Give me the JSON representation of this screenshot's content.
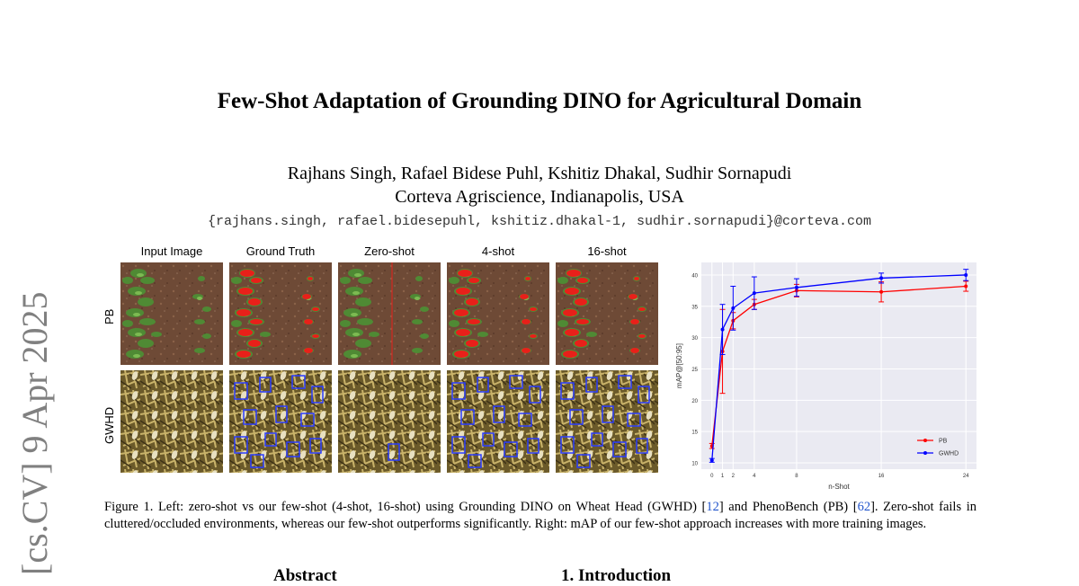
{
  "paper": {
    "title": "Few-Shot Adaptation of Grounding DINO for Agricultural Domain",
    "authors": "Rajhans Singh, Rafael Bidese Puhl, Kshitiz Dhakal, Sudhir Sornapudi",
    "affiliation": "Corteva Agriscience, Indianapolis, USA",
    "email": "{rajhans.singh, rafael.bidesepuhl, kshitiz.dhakal-1, sudhir.sornapudi}@corteva.com",
    "arxiv_stamp": "[cs.CV]  9 Apr 2025"
  },
  "figure": {
    "columns": [
      "Input Image",
      "Ground Truth",
      "Zero-shot",
      "4-shot",
      "16-shot"
    ],
    "rows": [
      "PB",
      "GWHD"
    ],
    "caption": {
      "part1": "Figure 1. Left: zero-shot vs our few-shot (4-shot, 16-shot) using Grounding DINO on Wheat Head (GWHD) [",
      "ref1": "12",
      "part2": "] and PhenoBench (PB) [",
      "ref2": "62",
      "part3": "]. Zero-shot fails in cluttered/occluded environments, whereas our few-shot outperforms significantly. Right: mAP of our few-shot approach increases with more training images."
    }
  },
  "sections": {
    "abstract": "Abstract",
    "intro": "1. Introduction"
  },
  "chart_data": {
    "type": "line",
    "xlabel": "n-Shot",
    "ylabel": "mAP@[50:95]",
    "x": [
      0,
      1,
      2,
      4,
      8,
      16,
      24
    ],
    "xticks": [
      0,
      1,
      2,
      4,
      8,
      16,
      24
    ],
    "yticks": [
      10,
      15,
      20,
      25,
      30,
      35,
      40
    ],
    "xlim": [
      -1,
      25
    ],
    "ylim": [
      9,
      42
    ],
    "grid": true,
    "legend_position": "bottom-right",
    "series": [
      {
        "name": "PB",
        "color": "#ff0000",
        "values": [
          12.7,
          27.8,
          32.7,
          35.3,
          37.5,
          37.3,
          38.2
        ],
        "err": [
          0.4,
          6.7,
          1.3,
          0.8,
          1.0,
          1.6,
          0.8
        ]
      },
      {
        "name": "GWHD",
        "color": "#0000ff",
        "values": [
          10.4,
          31.3,
          34.7,
          37.1,
          38.0,
          39.5,
          40.0
        ],
        "err": [
          0.3,
          4.0,
          3.5,
          2.6,
          1.4,
          0.8,
          0.9
        ]
      }
    ]
  }
}
